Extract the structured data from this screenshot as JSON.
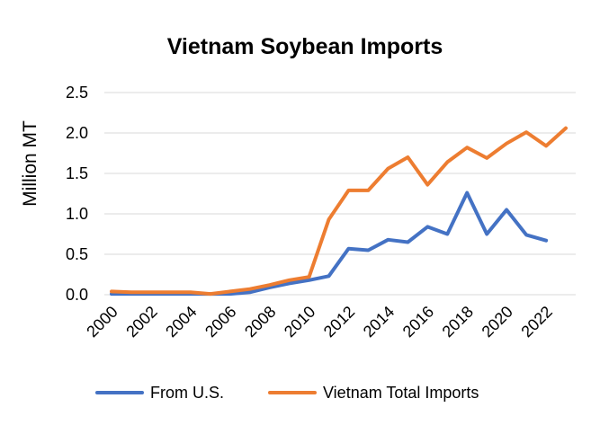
{
  "chart_data": {
    "type": "line",
    "title": "Vietnam Soybean Imports",
    "xlabel": "",
    "ylabel": "Million MT",
    "ylim": [
      0,
      2.5
    ],
    "yticks": [
      "0.0",
      "0.5",
      "1.0",
      "1.5",
      "2.0",
      "2.5"
    ],
    "xlim": [
      2000,
      2023
    ],
    "xticks": [
      "2000",
      "2002",
      "2004",
      "2006",
      "2008",
      "2010",
      "2012",
      "2014",
      "2016",
      "2018",
      "2020",
      "2022"
    ],
    "grid": true,
    "legend_position": "bottom",
    "series": [
      {
        "name": "From U.S.",
        "color": "#4472c4",
        "x": [
          2000,
          2001,
          2002,
          2003,
          2004,
          2005,
          2006,
          2007,
          2008,
          2009,
          2010,
          2011,
          2012,
          2013,
          2014,
          2015,
          2016,
          2017,
          2018,
          2019,
          2020,
          2021,
          2022
        ],
        "values": [
          0.01,
          0.01,
          0.01,
          0.01,
          0.01,
          0.01,
          0.01,
          0.03,
          0.09,
          0.14,
          0.18,
          0.23,
          0.57,
          0.55,
          0.68,
          0.65,
          0.84,
          0.75,
          1.26,
          0.75,
          1.05,
          0.74,
          0.67
        ]
      },
      {
        "name": "Vietnam Total Imports",
        "color": "#ed7d31",
        "x": [
          2000,
          2001,
          2002,
          2003,
          2004,
          2005,
          2006,
          2007,
          2008,
          2009,
          2010,
          2011,
          2012,
          2013,
          2014,
          2015,
          2016,
          2017,
          2018,
          2019,
          2020,
          2021,
          2022,
          2023
        ],
        "values": [
          0.04,
          0.03,
          0.03,
          0.03,
          0.03,
          0.01,
          0.04,
          0.07,
          0.12,
          0.18,
          0.22,
          0.93,
          1.29,
          1.29,
          1.56,
          1.7,
          1.36,
          1.64,
          1.82,
          1.69,
          1.87,
          2.01,
          1.84,
          2.06
        ]
      }
    ]
  }
}
